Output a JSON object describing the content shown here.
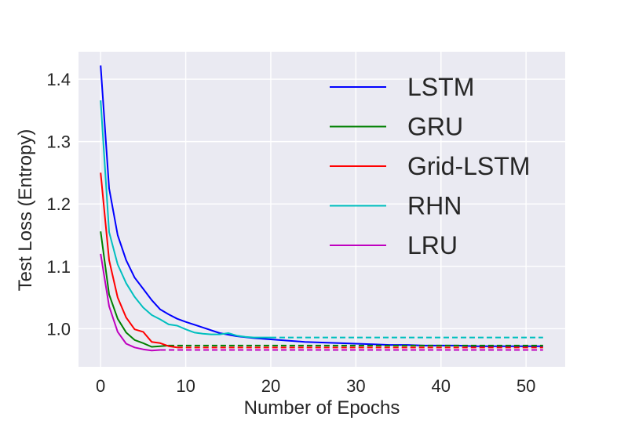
{
  "chart_data": {
    "type": "line",
    "title": "",
    "xlabel": "Number of Epochs",
    "ylabel": "Test Loss (Entropy)",
    "xlim": [
      -2.6,
      54.6
    ],
    "ylim": [
      0.939,
      1.444
    ],
    "xticks": [
      0,
      10,
      20,
      30,
      40,
      50
    ],
    "yticks": [
      1.0,
      1.1,
      1.2,
      1.3,
      1.4
    ],
    "xtick_labels": [
      "0",
      "10",
      "20",
      "30",
      "40",
      "50"
    ],
    "ytick_labels": [
      "1.0",
      "1.1",
      "1.2",
      "1.3",
      "1.4"
    ],
    "grid": true,
    "legend_position": "top-right",
    "series": [
      {
        "name": "LSTM",
        "color": "#0000ff",
        "x": [
          0,
          1,
          2,
          3,
          4,
          5,
          6,
          7,
          8,
          9,
          10,
          12,
          14,
          16,
          18,
          20,
          22,
          24,
          26,
          28,
          30,
          32,
          34,
          36,
          38,
          40,
          42,
          44,
          46,
          48,
          50,
          52
        ],
        "y": [
          1.422,
          1.225,
          1.15,
          1.11,
          1.082,
          1.064,
          1.046,
          1.031,
          1.023,
          1.016,
          1.011,
          1.002,
          0.993,
          0.988,
          0.985,
          0.983,
          0.981,
          0.979,
          0.978,
          0.977,
          0.976,
          0.975,
          0.974,
          0.974,
          0.973,
          0.973,
          0.973,
          0.972,
          0.972,
          0.972,
          0.972,
          0.972
        ],
        "dashed_from_x": null,
        "dashed_value": null
      },
      {
        "name": "GRU",
        "color": "#008000",
        "x": [
          0,
          1,
          2,
          3,
          4,
          5,
          6,
          7,
          8
        ],
        "y": [
          1.156,
          1.055,
          1.016,
          0.994,
          0.982,
          0.977,
          0.971,
          0.972,
          0.973
        ],
        "dashed_from_x": 8,
        "dashed_to_x": 52,
        "dashed_value": 0.973
      },
      {
        "name": "Grid-LSTM",
        "color": "#ff0000",
        "x": [
          0,
          1,
          2,
          3,
          4,
          5,
          6,
          7,
          8,
          9
        ],
        "y": [
          1.25,
          1.11,
          1.05,
          1.018,
          0.999,
          0.995,
          0.979,
          0.977,
          0.972,
          0.97
        ],
        "dashed_from_x": 9,
        "dashed_to_x": 52,
        "dashed_value": 0.97
      },
      {
        "name": "RHN",
        "color": "#00bfbf",
        "x": [
          0,
          1,
          2,
          3,
          4,
          5,
          6,
          7,
          8,
          9,
          10,
          11,
          12,
          13,
          14,
          15,
          16,
          17,
          18,
          19,
          20
        ],
        "y": [
          1.366,
          1.155,
          1.103,
          1.073,
          1.051,
          1.034,
          1.022,
          1.015,
          1.007,
          1.005,
          0.999,
          0.994,
          0.992,
          0.991,
          0.991,
          0.993,
          0.989,
          0.987,
          0.986,
          0.986,
          0.986
        ],
        "dashed_from_x": 20,
        "dashed_to_x": 52,
        "dashed_value": 0.986
      },
      {
        "name": "LRU",
        "color": "#bf00bf",
        "x": [
          0,
          1,
          2,
          3,
          4,
          5,
          6,
          7
        ],
        "y": [
          1.12,
          1.036,
          0.995,
          0.976,
          0.97,
          0.967,
          0.965,
          0.966
        ],
        "dashed_from_x": 7,
        "dashed_to_x": 52,
        "dashed_value": 0.966
      }
    ]
  }
}
